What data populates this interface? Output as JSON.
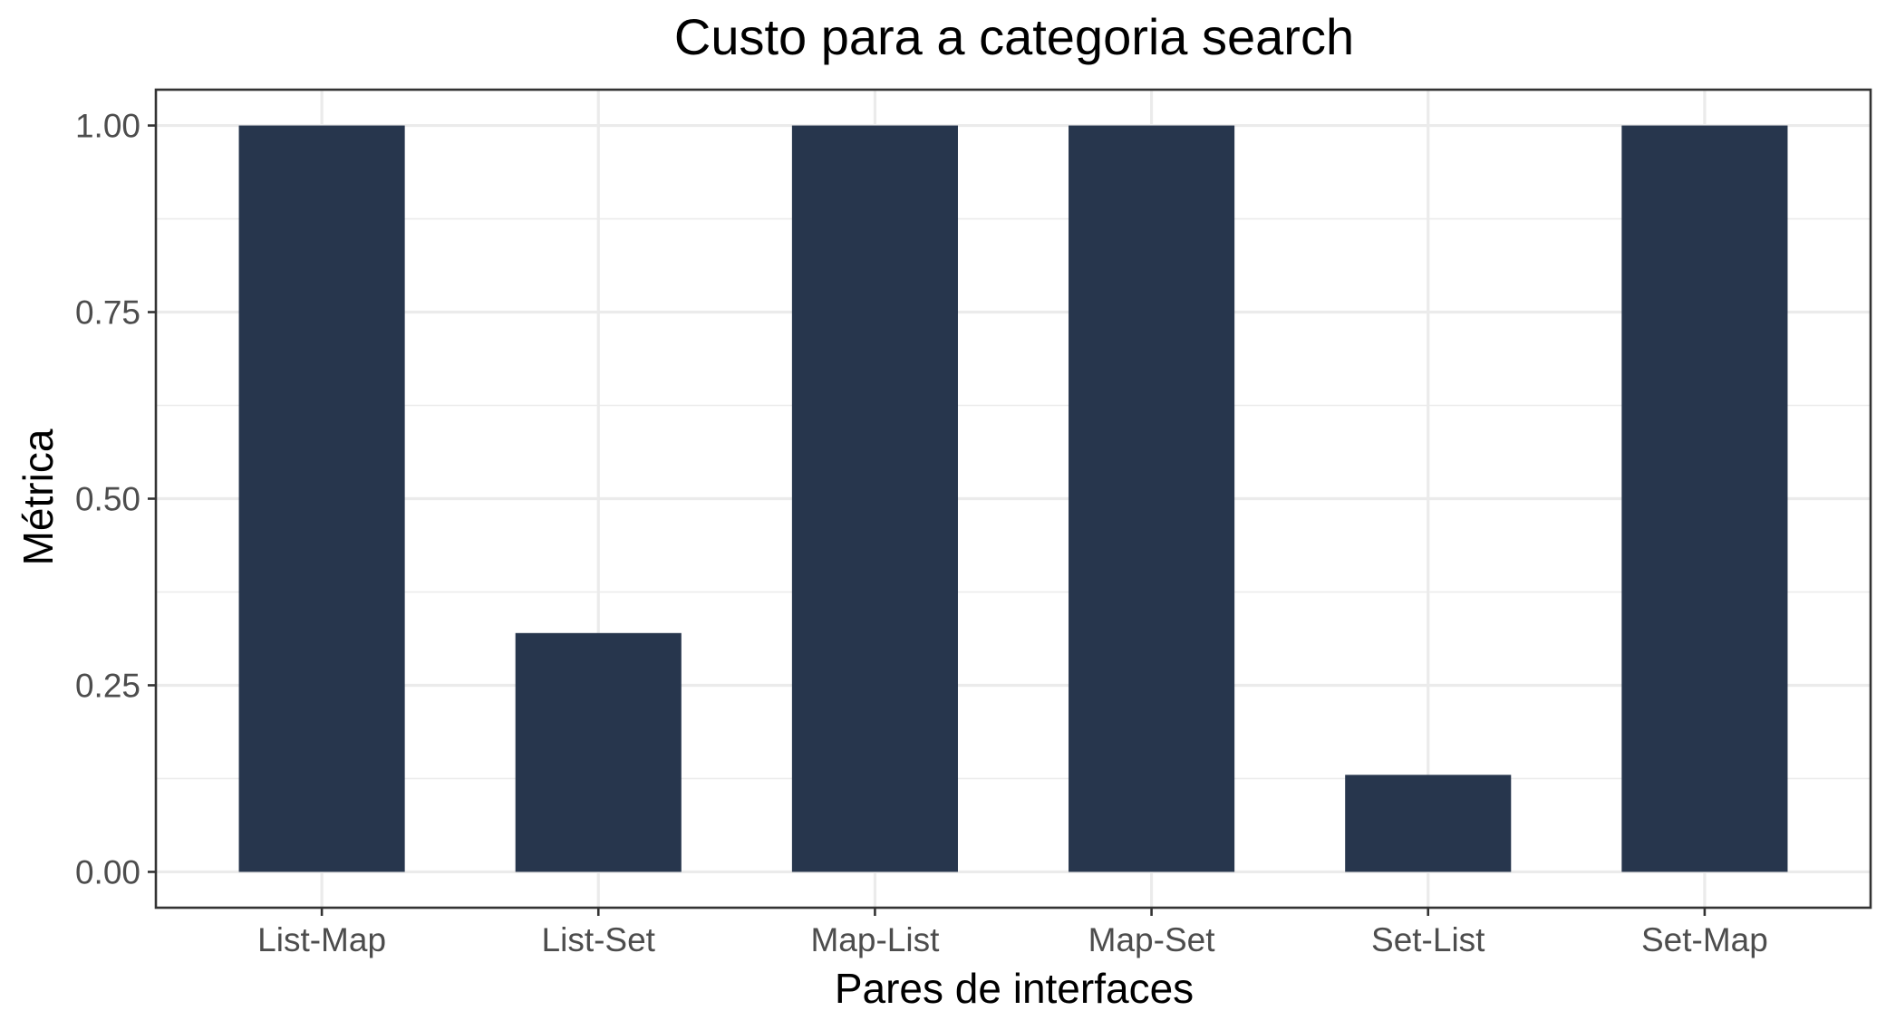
{
  "chart_data": {
    "type": "bar",
    "title": "Custo para a categoria search",
    "xlabel": "Pares de interfaces",
    "ylabel": "Métrica",
    "categories": [
      "List-Map",
      "List-Set",
      "Map-List",
      "Map-Set",
      "Set-List",
      "Set-Map"
    ],
    "values": [
      1.0,
      0.32,
      1.0,
      1.0,
      0.13,
      1.0
    ],
    "ylim": [
      -0.048,
      1.048
    ],
    "yticks": [
      0.0,
      0.25,
      0.5,
      0.75,
      1.0
    ],
    "ytick_labels": [
      "0.00",
      "0.25",
      "0.50",
      "0.75",
      "1.00"
    ],
    "bar_color": "#27364d",
    "grid": true,
    "legend": "none"
  }
}
